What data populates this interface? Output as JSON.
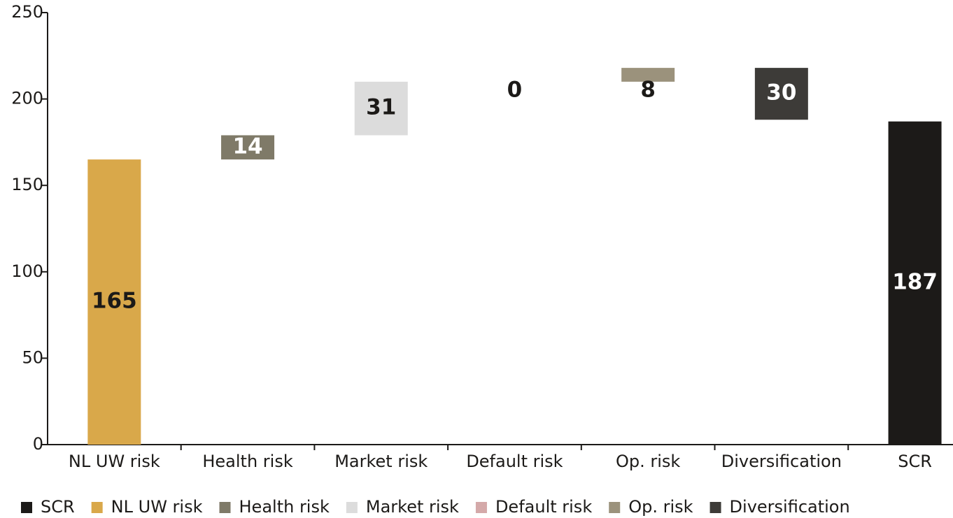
{
  "chart_data": {
    "type": "waterfall",
    "categories": [
      "NL UW risk",
      "Health risk",
      "Market risk",
      "Default risk",
      "Op. risk",
      "Diversification",
      "SCR"
    ],
    "values": [
      165,
      14,
      31,
      0,
      8,
      -30,
      187
    ],
    "value_labels": [
      "165",
      "14",
      "31",
      "0",
      "8",
      "30",
      "187"
    ],
    "colors": [
      "#d9a84a",
      "#7f7a68",
      "#dcdcdc",
      "#d4a9a9",
      "#9b927c",
      "#3d3b38",
      "#1c1a18"
    ],
    "ylim": [
      0,
      250
    ],
    "yticks": [
      0,
      50,
      100,
      150,
      200,
      250
    ],
    "legend": [
      {
        "name": "SCR",
        "color": "#1c1a18"
      },
      {
        "name": "NL UW risk",
        "color": "#d9a84a"
      },
      {
        "name": "Health risk",
        "color": "#7f7a68"
      },
      {
        "name": "Market risk",
        "color": "#dcdcdc"
      },
      {
        "name": "Default risk",
        "color": "#d4a9a9"
      },
      {
        "name": "Op. risk",
        "color": "#9b927c"
      },
      {
        "name": "Diversification",
        "color": "#3d3b38"
      }
    ]
  }
}
